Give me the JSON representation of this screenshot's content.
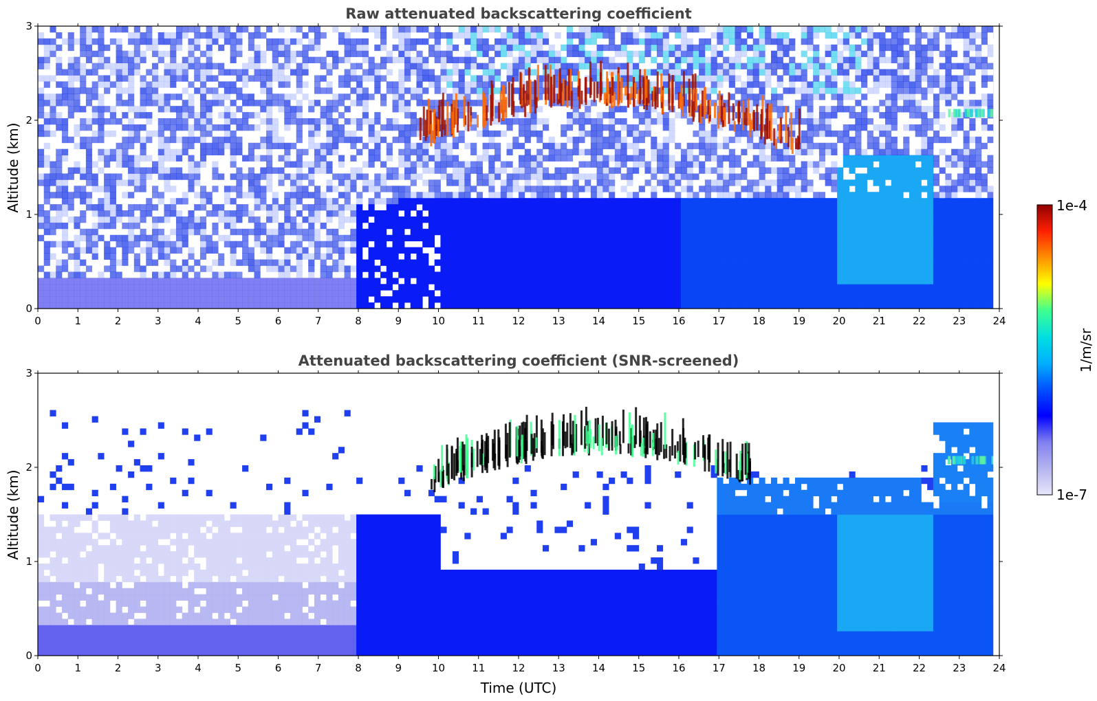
{
  "chart_data": [
    {
      "type": "heatmap",
      "title": "Raw attenuated backscattering coefficient",
      "xlabel": "",
      "ylabel": "Altitude (km)",
      "xlim": [
        0,
        24
      ],
      "ylim": [
        0,
        3
      ],
      "xticks": [
        "0",
        "1",
        "2",
        "3",
        "4",
        "5",
        "6",
        "7",
        "8",
        "9",
        "10",
        "11",
        "12",
        "13",
        "14",
        "15",
        "16",
        "17",
        "18",
        "19",
        "20",
        "21",
        "22",
        "23",
        "24"
      ],
      "yticks": [
        "0",
        "1",
        "2",
        "3"
      ],
      "features": [
        {
          "feature": "noisy background",
          "x_range": [
            0,
            24
          ],
          "y_range": [
            0.3,
            3
          ],
          "level": "low",
          "noise": true
        },
        {
          "feature": "boundary layer",
          "x_range": [
            0,
            8
          ],
          "y_range": [
            0,
            0.4
          ],
          "level": "low"
        },
        {
          "feature": "aerosol layer",
          "x_range": [
            8,
            24
          ],
          "y_range": [
            0,
            1.2
          ],
          "level": "moderate"
        },
        {
          "feature": "cloud layer",
          "x_range": [
            9.5,
            19
          ],
          "y_range": [
            1.6,
            2.4
          ],
          "level": "high"
        },
        {
          "feature": "aerosol plumes",
          "x_range": [
            20,
            22.3
          ],
          "y_range": [
            0.3,
            1.6
          ],
          "level": "moderate-high"
        },
        {
          "feature": "cloud tops",
          "x_range": [
            22.6,
            24
          ],
          "y_range": [
            1.9,
            2.2
          ],
          "level": "moderate-high"
        }
      ]
    },
    {
      "type": "heatmap",
      "title": "Attenuated backscattering coefficient (SNR-screened)",
      "xlabel": "Time (UTC)",
      "ylabel": "Altitude (km)",
      "xlim": [
        0,
        24
      ],
      "ylim": [
        0,
        3
      ],
      "xticks": [
        "0",
        "1",
        "2",
        "3",
        "4",
        "5",
        "6",
        "7",
        "8",
        "9",
        "10",
        "11",
        "12",
        "13",
        "14",
        "15",
        "16",
        "17",
        "18",
        "19",
        "20",
        "21",
        "22",
        "23",
        "24"
      ],
      "yticks": [
        "0",
        "1",
        "2",
        "3"
      ],
      "features": [
        {
          "feature": "screened boundary layer",
          "x_range": [
            0,
            8
          ],
          "y_range": [
            0,
            1.5
          ],
          "level": "low"
        },
        {
          "feature": "aerosol layer",
          "x_range": [
            8,
            24
          ],
          "y_range": [
            0,
            1.5
          ],
          "level": "moderate"
        },
        {
          "feature": "cloud layer",
          "x_range": [
            9.8,
            17.8
          ],
          "y_range": [
            1.7,
            2.4
          ],
          "level": "saturated"
        },
        {
          "feature": "aerosol plumes",
          "x_range": [
            20,
            22.3
          ],
          "y_range": [
            0.3,
            1.6
          ],
          "level": "moderate-high"
        }
      ]
    }
  ],
  "colorbar": {
    "label": "1/m/sr",
    "min_label": "1e-7",
    "max_label": "1e-4",
    "colors": [
      "#e6e6fa",
      "#b4b4f0",
      "#8080f0",
      "#0000ff",
      "#0050ff",
      "#00b0ff",
      "#00e0e0",
      "#40ff90",
      "#ffff00",
      "#ff9000",
      "#ff2000",
      "#900000"
    ]
  }
}
